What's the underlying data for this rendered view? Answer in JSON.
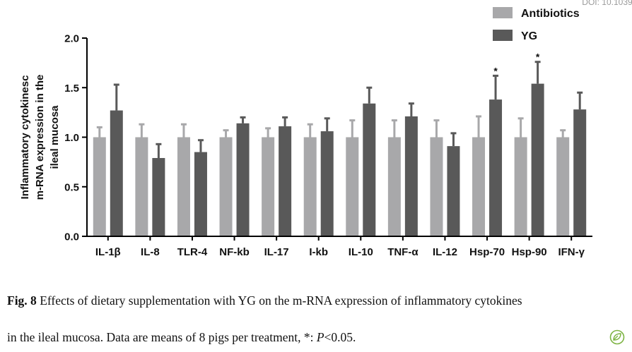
{
  "doi_fragment": "DOI: 10.1039/",
  "chart_data": {
    "type": "bar",
    "categories": [
      "IL-1β",
      "IL-8",
      "TLR-4",
      "NF-kb",
      "IL-17",
      "I-kb",
      "IL-10",
      "TNF-α",
      "IL-12",
      "Hsp-70",
      "Hsp-90",
      "IFN-γ"
    ],
    "series": [
      {
        "name": "Antibiotics",
        "color": "#a8a8aa",
        "values": [
          1.0,
          1.0,
          1.0,
          1.0,
          1.0,
          1.0,
          1.0,
          1.0,
          1.0,
          1.0,
          1.0,
          1.0
        ],
        "errors": [
          0.1,
          0.13,
          0.13,
          0.07,
          0.09,
          0.13,
          0.17,
          0.17,
          0.17,
          0.21,
          0.19,
          0.07
        ]
      },
      {
        "name": "YG",
        "color": "#595959",
        "values": [
          1.27,
          0.79,
          0.85,
          1.14,
          1.11,
          1.06,
          1.34,
          1.21,
          0.91,
          1.38,
          1.54,
          1.28
        ],
        "errors": [
          0.26,
          0.14,
          0.12,
          0.06,
          0.09,
          0.13,
          0.16,
          0.13,
          0.13,
          0.24,
          0.22,
          0.17
        ]
      }
    ],
    "significance": [
      "",
      "",
      "",
      "",
      "",
      "",
      "",
      "",
      "",
      "*",
      "*",
      ""
    ],
    "ylabel": "Inflammatory cytokinesc m-RNA expression in the ileal mucosa",
    "ylabel_lines": [
      "Inflammatory cytokinesc",
      "m-RNA expression in the",
      "ileal mucosa"
    ],
    "ylim": [
      0,
      2.0
    ],
    "yticks": [
      "0.0",
      "0.5",
      "1.0",
      "1.5",
      "2.0"
    ],
    "legend_position": "top-right",
    "grid": false
  },
  "caption": {
    "label": "Fig. 8",
    "line1": " Effects of dietary supplementation with YG on the m-RNA expression of inflammatory cytokines",
    "line2_pre": "in the ileal mucosa. Data are means of 8 pigs per treatment, *: ",
    "line2_italic": "P",
    "line2_post": "<0.05."
  },
  "badge_icon": "leaf-icon"
}
